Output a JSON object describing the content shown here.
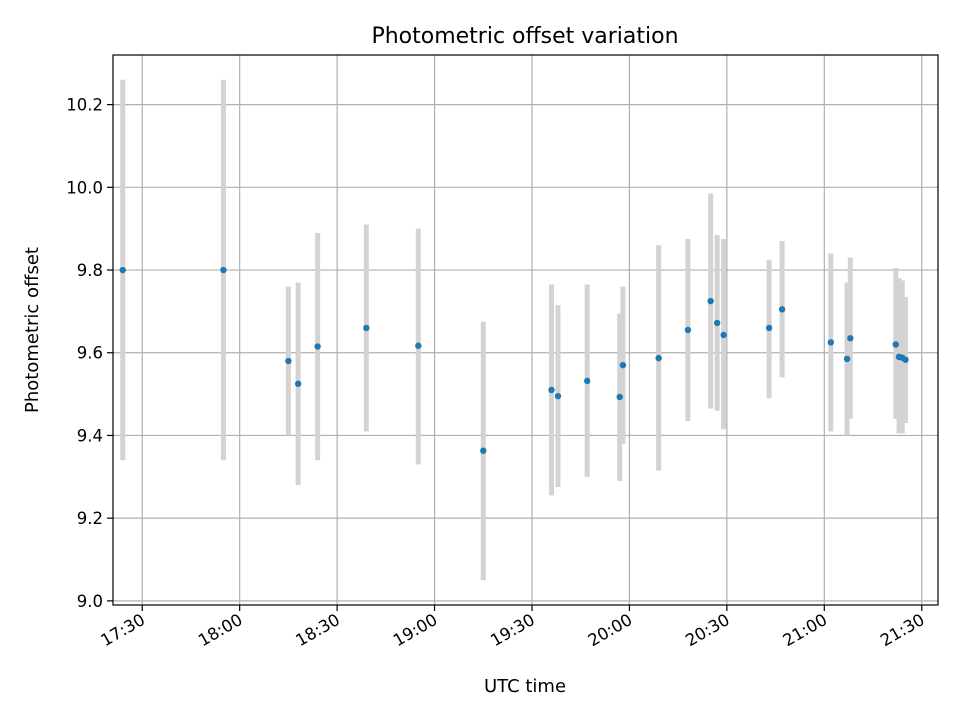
{
  "chart_data": {
    "type": "scatter",
    "title": "Photometric offset variation",
    "xlabel": "UTC time",
    "ylabel": "Photometric offset",
    "x_unit": "UTC time of day (HH:MM)",
    "xlim": [
      "17:21",
      "21:35"
    ],
    "ylim": [
      8.99,
      10.32
    ],
    "grid": true,
    "x_ticks": [
      "17:30",
      "18:00",
      "18:30",
      "19:00",
      "19:30",
      "20:00",
      "20:30",
      "21:00",
      "21:30"
    ],
    "y_ticks": [
      "9.0",
      "9.2",
      "9.4",
      "9.6",
      "9.8",
      "10.0",
      "10.2"
    ],
    "y_tick_values": [
      9.0,
      9.2,
      9.4,
      9.6,
      9.8,
      10.0,
      10.2
    ],
    "point_color": "#1f77b4",
    "errorbar_color": "#d3d3d3",
    "points": [
      {
        "x": "17:24",
        "y": 9.8,
        "ylow": 9.34,
        "yhigh": 10.26
      },
      {
        "x": "17:55",
        "y": 9.8,
        "ylow": 9.34,
        "yhigh": 10.26
      },
      {
        "x": "18:15",
        "y": 9.58,
        "ylow": 9.4,
        "yhigh": 9.76
      },
      {
        "x": "18:18",
        "y": 9.525,
        "ylow": 9.28,
        "yhigh": 9.77
      },
      {
        "x": "18:24",
        "y": 9.615,
        "ylow": 9.34,
        "yhigh": 9.89
      },
      {
        "x": "18:39",
        "y": 9.66,
        "ylow": 9.41,
        "yhigh": 9.91
      },
      {
        "x": "18:55",
        "y": 9.617,
        "ylow": 9.33,
        "yhigh": 9.9
      },
      {
        "x": "19:15",
        "y": 9.363,
        "ylow": 9.05,
        "yhigh": 9.675
      },
      {
        "x": "19:36",
        "y": 9.51,
        "ylow": 9.255,
        "yhigh": 9.765
      },
      {
        "x": "19:38",
        "y": 9.495,
        "ylow": 9.275,
        "yhigh": 9.715
      },
      {
        "x": "19:47",
        "y": 9.532,
        "ylow": 9.3,
        "yhigh": 9.765
      },
      {
        "x": "19:57",
        "y": 9.493,
        "ylow": 9.29,
        "yhigh": 9.695
      },
      {
        "x": "19:58",
        "y": 9.57,
        "ylow": 9.38,
        "yhigh": 9.76
      },
      {
        "x": "20:09",
        "y": 9.587,
        "ylow": 9.315,
        "yhigh": 9.86
      },
      {
        "x": "20:18",
        "y": 9.655,
        "ylow": 9.435,
        "yhigh": 9.875
      },
      {
        "x": "20:25",
        "y": 9.725,
        "ylow": 9.465,
        "yhigh": 9.985
      },
      {
        "x": "20:27",
        "y": 9.672,
        "ylow": 9.46,
        "yhigh": 9.885
      },
      {
        "x": "20:29",
        "y": 9.643,
        "ylow": 9.415,
        "yhigh": 9.875
      },
      {
        "x": "20:43",
        "y": 9.66,
        "ylow": 9.49,
        "yhigh": 9.825
      },
      {
        "x": "20:47",
        "y": 9.705,
        "ylow": 9.54,
        "yhigh": 9.87
      },
      {
        "x": "21:02",
        "y": 9.625,
        "ylow": 9.41,
        "yhigh": 9.84
      },
      {
        "x": "21:07",
        "y": 9.585,
        "ylow": 9.4,
        "yhigh": 9.77
      },
      {
        "x": "21:08",
        "y": 9.635,
        "ylow": 9.44,
        "yhigh": 9.83
      },
      {
        "x": "21:22",
        "y": 9.62,
        "ylow": 9.44,
        "yhigh": 9.805
      },
      {
        "x": "21:23",
        "y": 9.59,
        "ylow": 9.405,
        "yhigh": 9.78
      },
      {
        "x": "21:24",
        "y": 9.588,
        "ylow": 9.405,
        "yhigh": 9.775
      },
      {
        "x": "21:25",
        "y": 9.583,
        "ylow": 9.43,
        "yhigh": 9.735
      }
    ]
  }
}
